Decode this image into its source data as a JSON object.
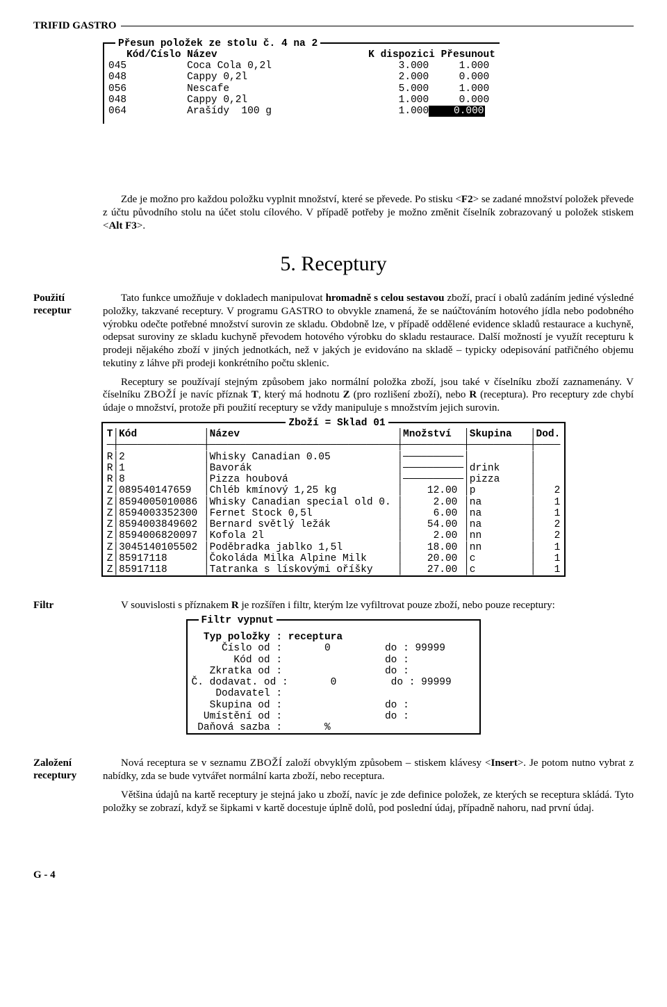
{
  "header_title": "TRIFID GASTRO",
  "table1": {
    "legend": "Přesun položek ze stolu č. 4 na 2",
    "header": "   Kód/Číslo Název                         K dispozici Přesunout",
    "rows": [
      {
        "left": "045          Coca Cola 0,2l                     3.000     1.000"
      },
      {
        "left": "048          Cappy 0,2l                         2.000     0.000"
      },
      {
        "left": "056          Nescafe                            5.000     1.000"
      },
      {
        "left": "048          Cappy 0,2l                         1.000     0.000"
      },
      {
        "left": "064          Arašídy  100 g                     1.000",
        "sel": "    0.000"
      }
    ]
  },
  "intro_p1_a": "Zde je možno pro každou položku vyplnit množství, které se převede. Po stisku <",
  "intro_p1_bold1": "F2",
  "intro_p1_b": "> se zadané množství položek převede z účtu původního stolu na účet stolu cílového. V případě potřeby je možno změnit číselník zobrazovaný u položek stiskem <",
  "intro_p1_bold2": "Alt F3",
  "intro_p1_c": ">.",
  "section5_heading": "5. Receptury",
  "side_use_label": "Použití\nreceptur",
  "side_use_p1_a": "Tato funkce umožňuje v dokladech manipulovat ",
  "side_use_p1_b1": "hromadně s celou sestavou",
  "side_use_p1_b": " zboží, prací i obalů zadáním jediné výsledné položky, takzvané receptury. V programu GASTRO to obvykle znamená, že se naúčtováním hotového jídla nebo podobného výrobku odečte potřebné množství surovin ze skladu. Obdobně lze, v případě oddělené evidence skladů restaurace a kuchyně, odepsat suroviny ze skladu kuchyně převodem hotového výrobku do skladu restaurace. Další možností je využít recepturu k prodeji nějakého zboží v jiných jednotkách, než v jakých je evidováno na skladě – typicky odepisování patřičného objemu tekutiny z láhve při prodeji konkrétního počtu sklenic.",
  "side_use_p2_a": "Receptury se používají stejným způsobem jako normální položka zboží, jsou také v číselníku zboží zaznamenány. V číselníku ",
  "side_use_p2_zbozi": "ZBOŽÍ",
  "side_use_p2_b": " je navíc příznak ",
  "side_use_p2_T": "T",
  "side_use_p2_c": ", který má hodnotu ",
  "side_use_p2_Z": "Z",
  "side_use_p2_d": " (pro rozlišení zboží), nebo ",
  "side_use_p2_R": "R",
  "side_use_p2_e": " (receptura). Pro receptury zde chybí údaje o množství, protože při použití receptury se vždy manipuluje s množstvím jejich surovin.",
  "table2": {
    "legend": "Zboží = Sklad 01",
    "header": "T│Kód           │Název                          │Množství  │Skupina   │Dod.",
    "hr": "─┼──────────────┼───────────────────────────────┼──────────┼──────────┼────",
    "rows": [
      "R│2             │Whisky Canadian 0.05           │──────────│          │    ",
      "R│1             │Bavorák                        │──────────│drink     │    ",
      "R│8             │Pizza houbová                  │──────────│pizza     │    ",
      "Z│089540147659  │Chléb kmínový 1,25 kg          │    12.00 │p         │   2",
      "Z│8594005010086 │Whisky Canadian special old 0. │     2.00 │na        │   1",
      "Z│8594003352300 │Fernet Stock 0,5l              │     6.00 │na        │   1",
      "Z│8594003849602 │Bernard světlý ležák           │    54.00 │na        │   2",
      "Z│8594006820097 │Kofola 2l                      │     2.00 │nn        │   2",
      "Z│3045140105502 │Poděbradka jablko 1,5l         │    18.00 │nn        │   1",
      "Z│85917118      │Čokoláda Milka Alpine Milk     │    20.00 │c         │   1",
      "Z│85917118      │Tatranka s lískovými oříšky    │    27.00 │c         │   1"
    ]
  },
  "side_filter_label": "Filtr",
  "side_filter_p_a": "V souvislosti s příznakem ",
  "side_filter_p_R": "R",
  "side_filter_p_b": " je rozšířen i filtr, kterým lze vyfiltrovat pouze zboží, nebo pouze receptury:",
  "filterbox": {
    "legend": "Filtr vypnut",
    "rows": [
      "  Typ položky : receptura                     ",
      "     Číslo od :       0         do : 99999    ",
      "       Kód od :                 do :          ",
      "   Zkratka od :                 do :          ",
      "Č. dodavat. od :       0         do : 99999    ",
      "    Dodavatel :                               ",
      "   Skupina od :                 do :          ",
      "  Umístění od :                 do :          ",
      " Daňová sazba :       %                       "
    ]
  },
  "side_new_label": "Založení\nreceptury",
  "side_new_p1_a": "Nová receptura se v seznamu ",
  "side_new_p1_zbozi": "ZBOŽÍ",
  "side_new_p1_b": " založí obvyklým způsobem – stiskem klávesy <",
  "side_new_p1_insert": "Insert",
  "side_new_p1_c": ">. Je potom  nutno vybrat z nabídky, zda se bude vytvářet normální karta zboží, nebo receptura.",
  "side_new_p2": "Většina údajů na kartě receptury je stejná jako u zboží, navíc je zde definice položek, ze kterých se receptura skládá. Tyto položky se zobrazí, když se šipkami v kartě docestuje úplně dolů, pod poslední údaj, případně nahoru, nad první údaj.",
  "footer_pagenum": "G - 4"
}
